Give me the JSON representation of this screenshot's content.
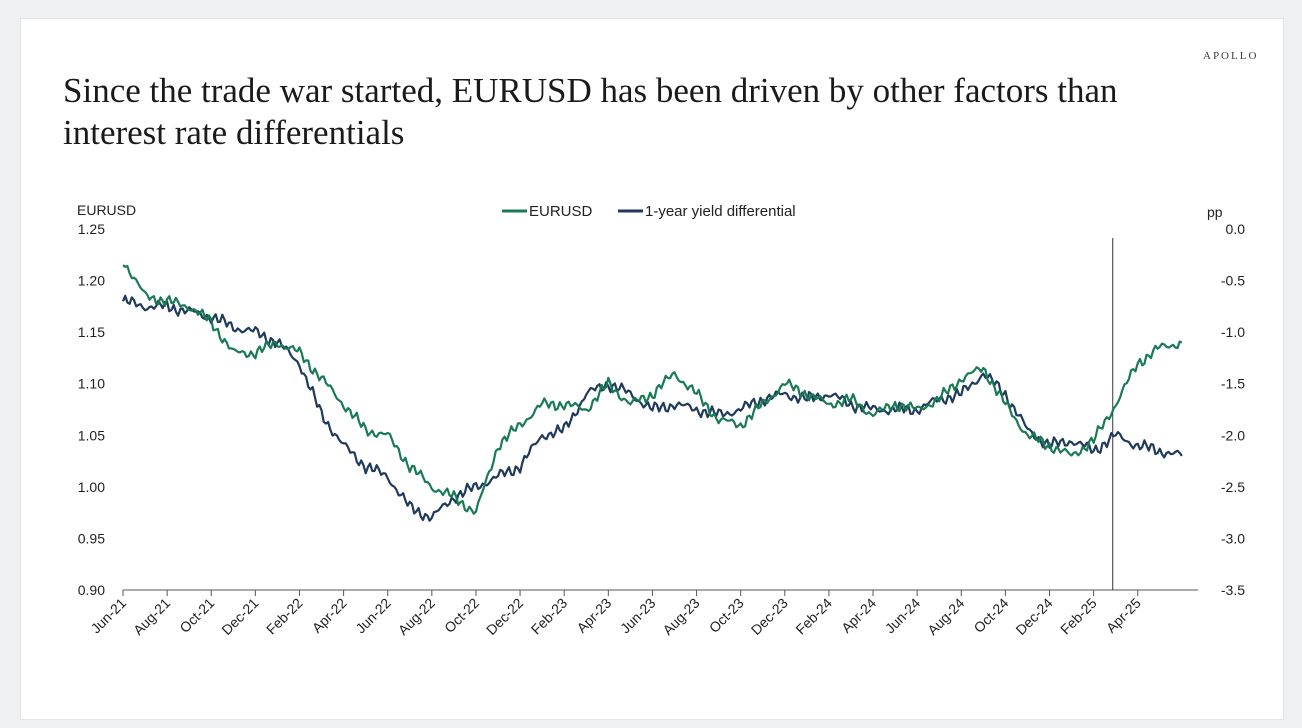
{
  "header": {
    "brand": "APOLLO",
    "title": "Since the trade war started, EURUSD has been driven by other factors than interest rate differentials"
  },
  "colors": {
    "eurusd": "#1a7a55",
    "yield_diff": "#1f3a5c",
    "axis": "#555555",
    "marker": "#333333"
  },
  "chart_data": {
    "type": "line",
    "left_axis": {
      "label": "EURUSD",
      "ylim": [
        0.9,
        1.25
      ],
      "ticks": [
        "1.25",
        "1.20",
        "1.15",
        "1.10",
        "1.05",
        "1.00",
        "0.95",
        "0.90"
      ]
    },
    "right_axis": {
      "label": "pp",
      "ylim": [
        -3.5,
        0.0
      ],
      "ticks": [
        "0.0",
        "-0.5",
        "-1.0",
        "-1.5",
        "-2.0",
        "-2.5",
        "-3.0",
        "-3.5"
      ]
    },
    "x_ticks": [
      "Jun-21",
      "Aug-21",
      "Oct-21",
      "Dec-21",
      "Feb-22",
      "Apr-22",
      "Jun-22",
      "Aug-22",
      "Oct-22",
      "Dec-22",
      "Feb-23",
      "Apr-23",
      "Jun-23",
      "Aug-23",
      "Oct-23",
      "Dec-23",
      "Feb-24",
      "Apr-24",
      "Jun-24",
      "Aug-24",
      "Oct-24",
      "Dec-24",
      "Feb-25",
      "Apr-25"
    ],
    "vertical_marker": {
      "x": "Apr-25"
    },
    "legend": {
      "position": "top-center"
    },
    "series": [
      {
        "name": "EURUSD",
        "axis": "left",
        "x": [
          "Jun-21",
          "Jul-21",
          "Aug-21",
          "Sep-21",
          "Oct-21",
          "Nov-21",
          "Dec-21",
          "Jan-22",
          "Feb-22",
          "Mar-22",
          "Apr-22",
          "May-22",
          "Jun-22",
          "Jul-22",
          "Aug-22",
          "Sep-22",
          "Oct-22",
          "Nov-22",
          "Dec-22",
          "Jan-23",
          "Feb-23",
          "Mar-23",
          "Apr-23",
          "May-23",
          "Jun-23",
          "Jul-23",
          "Aug-23",
          "Sep-23",
          "Oct-23",
          "Nov-23",
          "Dec-23",
          "Jan-24",
          "Feb-24",
          "Mar-24",
          "Apr-24",
          "May-24",
          "Jun-24",
          "Jul-24",
          "Aug-24",
          "Sep-24",
          "Oct-24",
          "Nov-24",
          "Dec-24",
          "Jan-25",
          "Feb-25",
          "Mar-25",
          "Apr-25",
          "May-25",
          "Jun-25"
        ],
        "values": [
          1.22,
          1.185,
          1.18,
          1.175,
          1.16,
          1.13,
          1.13,
          1.14,
          1.13,
          1.105,
          1.08,
          1.055,
          1.05,
          1.02,
          1.0,
          0.99,
          0.975,
          1.04,
          1.06,
          1.08,
          1.08,
          1.075,
          1.1,
          1.08,
          1.09,
          1.11,
          1.09,
          1.065,
          1.06,
          1.08,
          1.1,
          1.09,
          1.08,
          1.085,
          1.07,
          1.08,
          1.075,
          1.085,
          1.105,
          1.115,
          1.08,
          1.05,
          1.04,
          1.03,
          1.045,
          1.08,
          1.12,
          1.135,
          1.14
        ]
      },
      {
        "name": "1-year yield differential",
        "axis": "right",
        "x": [
          "Jun-21",
          "Jul-21",
          "Aug-21",
          "Sep-21",
          "Oct-21",
          "Nov-21",
          "Dec-21",
          "Jan-22",
          "Feb-22",
          "Mar-22",
          "Apr-22",
          "May-22",
          "Jun-22",
          "Jul-22",
          "Aug-22",
          "Sep-22",
          "Oct-22",
          "Nov-22",
          "Dec-22",
          "Jan-23",
          "Feb-23",
          "Mar-23",
          "Apr-23",
          "May-23",
          "Jun-23",
          "Jul-23",
          "Aug-23",
          "Sep-23",
          "Oct-23",
          "Nov-23",
          "Dec-23",
          "Jan-24",
          "Feb-24",
          "Mar-24",
          "Apr-24",
          "May-24",
          "Jun-24",
          "Jul-24",
          "Aug-24",
          "Sep-24",
          "Oct-24",
          "Nov-24",
          "Dec-24",
          "Jan-25",
          "Feb-25",
          "Mar-25",
          "Apr-25",
          "May-25",
          "Jun-25"
        ],
        "values": [
          -0.7,
          -0.75,
          -0.75,
          -0.8,
          -0.85,
          -0.95,
          -1.0,
          -1.1,
          -1.3,
          -1.8,
          -2.1,
          -2.3,
          -2.4,
          -2.7,
          -2.8,
          -2.6,
          -2.5,
          -2.4,
          -2.3,
          -2.0,
          -1.95,
          -1.6,
          -1.5,
          -1.6,
          -1.75,
          -1.7,
          -1.75,
          -1.8,
          -1.75,
          -1.65,
          -1.6,
          -1.65,
          -1.6,
          -1.7,
          -1.75,
          -1.75,
          -1.75,
          -1.65,
          -1.6,
          -1.4,
          -1.6,
          -1.95,
          -2.1,
          -2.05,
          -2.15,
          -2.0,
          -2.1,
          -2.15,
          -2.2
        ]
      }
    ]
  }
}
